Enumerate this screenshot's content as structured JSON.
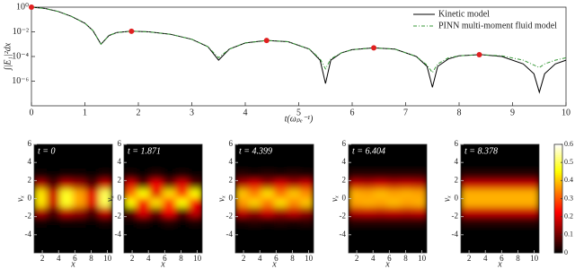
{
  "chart_data": [
    {
      "type": "line",
      "xlabel": "t(ωₚₑ⁻¹)",
      "ylabel": "∫|E₁|²dx",
      "log_y": true,
      "legend": "upper right",
      "xlim": [
        0,
        10
      ],
      "xticks": [
        0,
        1,
        2,
        3,
        4,
        5,
        6,
        7,
        8,
        9,
        10
      ],
      "ylim": [
        1e-08,
        1
      ],
      "yticks": [
        {
          "value": 1,
          "label": "10⁰"
        },
        {
          "value": 0.01,
          "label": "10⁻²"
        },
        {
          "value": 0.0001,
          "label": "10⁻⁴"
        },
        {
          "value": 1e-06,
          "label": "10⁻⁶"
        }
      ],
      "x": [
        0,
        0.25,
        0.5,
        0.75,
        1,
        1.15,
        1.3,
        1.45,
        1.6,
        1.87,
        2.2,
        2.6,
        3.0,
        3.3,
        3.5,
        3.7,
        4.0,
        4.4,
        4.8,
        5.2,
        5.4,
        5.5,
        5.6,
        5.8,
        6.0,
        6.4,
        6.8,
        7.2,
        7.4,
        7.5,
        7.6,
        7.8,
        8.0,
        8.4,
        8.8,
        9.2,
        9.4,
        9.5,
        9.6,
        9.8,
        10
      ],
      "series": [
        {
          "name": "Kinetic model",
          "color": "#000000",
          "dash": "solid",
          "values": [
            1,
            0.794,
            0.447,
            0.178,
            0.0501,
            0.0126,
            0.001,
            0.00501,
            0.00891,
            0.0112,
            0.01,
            0.00631,
            0.00251,
            0.000631,
            5.01e-05,
            0.000398,
            0.00126,
            0.002,
            0.00158,
            0.000398,
            5.01e-05,
            6.31e-07,
            5.01e-05,
            0.0002,
            0.000355,
            0.000501,
            0.000398,
            0.0001,
            1.58e-05,
            3.16e-07,
            1.58e-05,
            6.31e-05,
            0.000112,
            0.000141,
            0.0001,
            2.51e-05,
            3.98e-06,
            1.26e-07,
            3.98e-06,
            2.51e-05,
            5.01e-05
          ]
        },
        {
          "name": "PINN multi-moment fluid model",
          "color": "#3a9a3a",
          "dash": "dashdot",
          "values": [
            1,
            0.794,
            0.447,
            0.178,
            0.0501,
            0.0126,
            0.001,
            0.00501,
            0.00891,
            0.0112,
            0.01,
            0.00631,
            0.00251,
            0.000631,
            7.94e-05,
            0.000398,
            0.00126,
            0.002,
            0.00158,
            0.000398,
            6.31e-05,
            1e-05,
            6.31e-05,
            0.0002,
            0.000355,
            0.000501,
            0.000398,
            0.0001,
            2e-05,
            5.01e-06,
            2.51e-05,
            7.94e-05,
            0.000112,
            0.000141,
            0.000112,
            5.01e-05,
            2e-05,
            1.26e-05,
            2.51e-05,
            5.01e-05,
            7.94e-05
          ]
        }
      ],
      "markers": {
        "color": "#e02020",
        "x": [
          0,
          1.871,
          4.399,
          6.404,
          8.378
        ],
        "values": [
          1,
          0.0112,
          0.002,
          0.0005,
          0.00014
        ]
      }
    },
    {
      "type": "heatmap",
      "label": "t = 0",
      "colormap": "hot",
      "xlabel": "x",
      "ylabel": "vₓ",
      "xlim": [
        1,
        10.6
      ],
      "xticks": [
        2,
        4,
        6,
        8,
        10
      ],
      "ylim": [
        -6,
        6
      ],
      "yticks": [
        -4,
        -2,
        0,
        2,
        4,
        6
      ],
      "clim": [
        0,
        0.6
      ],
      "values": [
        [
          0,
          0,
          0,
          0,
          0,
          0
        ],
        [
          0,
          0,
          0,
          0,
          0,
          0
        ],
        [
          0,
          0,
          0,
          0,
          0,
          0
        ],
        [
          0.02,
          0.01,
          0.02,
          0.02,
          0.01,
          0.03
        ],
        [
          0.16,
          0.07,
          0.17,
          0.14,
          0.07,
          0.18
        ],
        [
          0.43,
          0.18,
          0.47,
          0.37,
          0.2,
          0.5
        ],
        [
          0.43,
          0.18,
          0.47,
          0.37,
          0.2,
          0.5
        ],
        [
          0.16,
          0.07,
          0.17,
          0.14,
          0.07,
          0.18
        ],
        [
          0.02,
          0.01,
          0.02,
          0.02,
          0.01,
          0.03
        ],
        [
          0,
          0,
          0,
          0,
          0,
          0
        ],
        [
          0,
          0,
          0,
          0,
          0,
          0
        ],
        [
          0,
          0,
          0,
          0,
          0,
          0
        ]
      ]
    },
    {
      "type": "heatmap",
      "label": "t = 1.871",
      "colormap": "hot",
      "xlabel": "x",
      "ylabel": "vₓ",
      "xlim": [
        1,
        10.6
      ],
      "xticks": [
        2,
        4,
        6,
        8,
        10
      ],
      "ylim": [
        -6,
        6
      ],
      "yticks": [
        -4,
        -2,
        0,
        2,
        4,
        6
      ],
      "clim": [
        0,
        0.6
      ],
      "values": [
        [
          0,
          0,
          0,
          0,
          0,
          0
        ],
        [
          0,
          0,
          0,
          0,
          0,
          0
        ],
        [
          0,
          0,
          0,
          0,
          0,
          0
        ],
        [
          0.03,
          0.01,
          0.04,
          0.01,
          0.03,
          0.01
        ],
        [
          0.2,
          0.08,
          0.22,
          0.1,
          0.2,
          0.08
        ],
        [
          0.32,
          0.45,
          0.2,
          0.42,
          0.28,
          0.45
        ],
        [
          0.45,
          0.22,
          0.42,
          0.28,
          0.45,
          0.22
        ],
        [
          0.08,
          0.2,
          0.1,
          0.22,
          0.08,
          0.18
        ],
        [
          0.01,
          0.03,
          0.01,
          0.04,
          0.01,
          0.03
        ],
        [
          0,
          0,
          0,
          0,
          0,
          0
        ],
        [
          0,
          0,
          0,
          0,
          0,
          0
        ],
        [
          0,
          0,
          0,
          0,
          0,
          0
        ]
      ]
    },
    {
      "type": "heatmap",
      "label": "t = 4.399",
      "colormap": "hot",
      "xlabel": "x",
      "ylabel": "vₓ",
      "xlim": [
        1,
        10.6
      ],
      "xticks": [
        2,
        4,
        6,
        8,
        10
      ],
      "ylim": [
        -6,
        6
      ],
      "yticks": [
        -4,
        -2,
        0,
        2,
        4,
        6
      ],
      "clim": [
        0,
        0.6
      ],
      "values": [
        [
          0,
          0,
          0,
          0,
          0,
          0
        ],
        [
          0,
          0,
          0,
          0,
          0,
          0
        ],
        [
          0,
          0,
          0,
          0,
          0,
          0
        ],
        [
          0.04,
          0.03,
          0.04,
          0.03,
          0.04,
          0.03
        ],
        [
          0.16,
          0.2,
          0.15,
          0.2,
          0.16,
          0.19
        ],
        [
          0.4,
          0.34,
          0.42,
          0.33,
          0.4,
          0.35
        ],
        [
          0.36,
          0.41,
          0.34,
          0.42,
          0.35,
          0.4
        ],
        [
          0.18,
          0.14,
          0.19,
          0.15,
          0.18,
          0.14
        ],
        [
          0.03,
          0.04,
          0.03,
          0.04,
          0.03,
          0.04
        ],
        [
          0,
          0,
          0,
          0,
          0,
          0
        ],
        [
          0,
          0,
          0,
          0,
          0,
          0
        ],
        [
          0,
          0,
          0,
          0,
          0,
          0
        ]
      ]
    },
    {
      "type": "heatmap",
      "label": "t = 6.404",
      "colormap": "hot",
      "xlabel": "x",
      "ylabel": "vₓ",
      "xlim": [
        1,
        10.6
      ],
      "xticks": [
        2,
        4,
        6,
        8,
        10
      ],
      "ylim": [
        -6,
        6
      ],
      "yticks": [
        -4,
        -2,
        0,
        2,
        4,
        6
      ],
      "clim": [
        0,
        0.6
      ],
      "values": [
        [
          0,
          0,
          0,
          0,
          0,
          0
        ],
        [
          0,
          0,
          0,
          0,
          0,
          0
        ],
        [
          0,
          0,
          0,
          0,
          0,
          0
        ],
        [
          0.04,
          0.04,
          0.04,
          0.04,
          0.04,
          0.04
        ],
        [
          0.18,
          0.17,
          0.19,
          0.17,
          0.18,
          0.17
        ],
        [
          0.38,
          0.37,
          0.39,
          0.37,
          0.38,
          0.37
        ],
        [
          0.37,
          0.38,
          0.37,
          0.39,
          0.37,
          0.38
        ],
        [
          0.17,
          0.18,
          0.17,
          0.18,
          0.17,
          0.18
        ],
        [
          0.04,
          0.04,
          0.04,
          0.04,
          0.04,
          0.04
        ],
        [
          0,
          0,
          0,
          0,
          0,
          0
        ],
        [
          0,
          0,
          0,
          0,
          0,
          0
        ],
        [
          0,
          0,
          0,
          0,
          0,
          0
        ]
      ]
    },
    {
      "type": "heatmap",
      "label": "t = 8.378",
      "colormap": "hot",
      "xlabel": "x",
      "ylabel": "vₓ",
      "xlim": [
        1,
        10.6
      ],
      "xticks": [
        2,
        4,
        6,
        8,
        10
      ],
      "ylim": [
        -6,
        6
      ],
      "yticks": [
        -4,
        -2,
        0,
        2,
        4,
        6
      ],
      "clim": [
        0,
        0.6
      ],
      "values": [
        [
          0,
          0,
          0,
          0,
          0,
          0
        ],
        [
          0,
          0,
          0,
          0,
          0,
          0
        ],
        [
          0,
          0,
          0,
          0,
          0,
          0
        ],
        [
          0.04,
          0.04,
          0.04,
          0.04,
          0.04,
          0.04
        ],
        [
          0.18,
          0.18,
          0.18,
          0.18,
          0.18,
          0.18
        ],
        [
          0.38,
          0.38,
          0.38,
          0.38,
          0.38,
          0.38
        ],
        [
          0.38,
          0.38,
          0.38,
          0.38,
          0.38,
          0.38
        ],
        [
          0.18,
          0.18,
          0.18,
          0.18,
          0.18,
          0.18
        ],
        [
          0.04,
          0.04,
          0.04,
          0.04,
          0.04,
          0.04
        ],
        [
          0,
          0,
          0,
          0,
          0,
          0
        ],
        [
          0,
          0,
          0,
          0,
          0,
          0
        ],
        [
          0,
          0,
          0,
          0,
          0,
          0
        ]
      ],
      "colorbar": {
        "lim": [
          0,
          0.6
        ],
        "ticks": [
          0,
          0.1,
          0.2,
          0.3,
          0.4,
          0.5,
          0.6
        ]
      }
    }
  ]
}
